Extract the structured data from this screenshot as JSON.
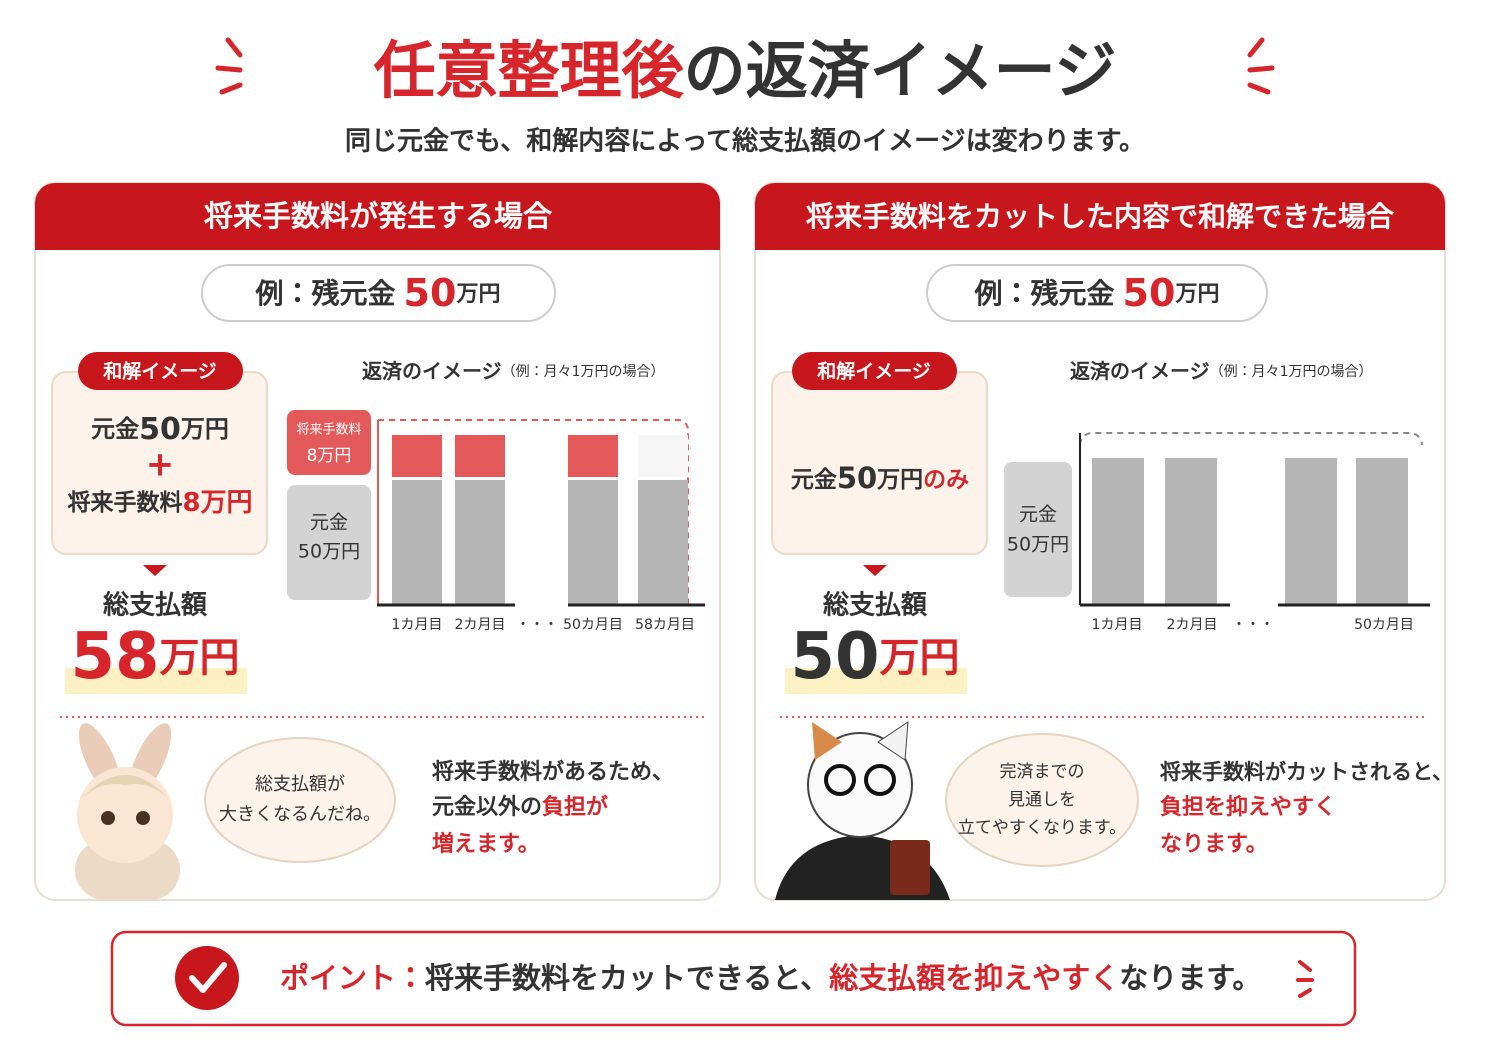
{
  "header": {
    "title_accent": "任意整理後",
    "title_rest": "の返済イメージ",
    "subtitle": "同じ元金でも、和解内容によって総支払額のイメージは変わります。"
  },
  "panels": [
    {
      "heading": "将来手数料が発生する場合",
      "example": {
        "label": "例：残元金",
        "amount": "50",
        "unit": "万円"
      },
      "settlement": {
        "tag": "和解イメージ",
        "line1": {
          "label": "元金",
          "amount": "50",
          "unit": "万円"
        },
        "plus": "+",
        "line2": {
          "label": "将来手数料",
          "amount": "8万円"
        }
      },
      "total": {
        "label": "総支払額",
        "amount": "58",
        "unit": "万円"
      },
      "chart_title": "返済のイメージ",
      "chart_note": "（例：月々1万円の場合）",
      "legend": [
        {
          "label": "将来手数料",
          "amount": "8万円"
        },
        {
          "label": "元金",
          "amount": "50万円"
        }
      ],
      "months": [
        "1カ月目",
        "2カ月目",
        "・・・",
        "50カ月目",
        "58カ月目"
      ],
      "speech": [
        "総支払額が",
        "大きくなるんだね。"
      ],
      "note": {
        "line1": "将来手数料があるため、",
        "line2": "元金以外の",
        "line2_accent": "負担が",
        "line3": "増えます。"
      }
    },
    {
      "heading": "将来手数料をカットした内容で和解できた場合",
      "example": {
        "label": "例：残元金",
        "amount": "50",
        "unit": "万円"
      },
      "settlement": {
        "tag": "和解イメージ",
        "line1": {
          "label": "元金",
          "amount": "50",
          "unit": "万円",
          "suffix": "のみ"
        }
      },
      "total": {
        "label": "総支払額",
        "amount": "50",
        "unit": "万円"
      },
      "chart_title": "返済のイメージ",
      "chart_note": "（例：月々1万円の場合）",
      "legend": [
        {
          "label": "元金",
          "amount": "50万円"
        }
      ],
      "months": [
        "1カ月目",
        "2カ月目",
        "・・・",
        "50カ月目"
      ],
      "speech": [
        "完済までの",
        "見通しを",
        "立てやすくなります。"
      ],
      "note": {
        "line1": "将来手数料がカットされると、",
        "line2": "負担を抑えやすく",
        "line3": "なります。"
      }
    }
  ],
  "footer": {
    "label": "ポイント：",
    "text1": "将来手数料をカットできると、",
    "accent": "総支払額を抑えやすく",
    "text2": "なります。"
  }
}
